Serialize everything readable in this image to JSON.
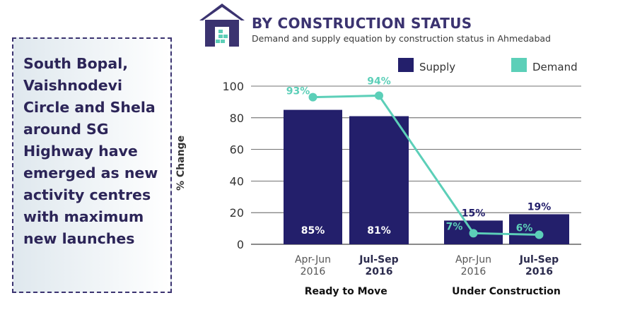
{
  "callout": {
    "text": "South Bopal, Vaishnodevi Circle and Shela around SG Highway have emerged as new activity centres with maximum new launches"
  },
  "header": {
    "title": "BY CONSTRUCTION STATUS",
    "subtitle": "Demand and supply equation by construction status in Ahmedabad",
    "icon": "house-icon"
  },
  "colors": {
    "supply": "#231f6b",
    "demand": "#5ccfb8",
    "accent": "#3b3370"
  },
  "chart_data": {
    "type": "bar",
    "ylabel": "% Change",
    "ylim": [
      0,
      100
    ],
    "yticks": [
      0,
      20,
      40,
      60,
      80,
      100
    ],
    "grid": true,
    "legend_position": "top-right",
    "legend": [
      "Supply",
      "Demand"
    ],
    "groups": [
      {
        "label": "Ready to Move",
        "categories": [
          {
            "line1": "Apr-Jun",
            "line2": "2016",
            "bold": false
          },
          {
            "line1": "Jul-Sep",
            "line2": "2016",
            "bold": true
          }
        ]
      },
      {
        "label": "Under Construction",
        "categories": [
          {
            "line1": "Apr-Jun",
            "line2": "2016",
            "bold": false
          },
          {
            "line1": "Jul-Sep",
            "line2": "2016",
            "bold": true
          }
        ]
      }
    ],
    "series": [
      {
        "name": "Supply",
        "type": "bar",
        "values": [
          85,
          81,
          15,
          19
        ],
        "labels": [
          "85%",
          "81%",
          "15%",
          "19%"
        ]
      },
      {
        "name": "Demand",
        "type": "line",
        "values": [
          93,
          94,
          7,
          6
        ],
        "labels": [
          "93%",
          "94%",
          "7%",
          "6%"
        ]
      }
    ]
  }
}
